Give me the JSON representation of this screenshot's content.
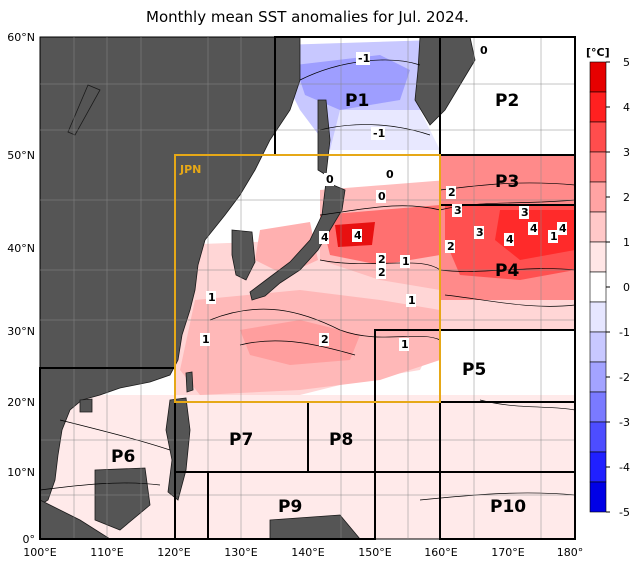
{
  "title": "Monthly mean SST anomalies for Jul. 2024.",
  "colorbar": {
    "unit": "[°C]",
    "ticks": [
      "5",
      "4",
      "3",
      "2",
      "1",
      "0",
      "-1",
      "-2",
      "-3",
      "-4",
      "-5"
    ],
    "colors_top_to_bottom": [
      "#e60000",
      "#ff2020",
      "#ff4d4d",
      "#ff7a7a",
      "#ffa3a3",
      "#ffc8c8",
      "#ffe6e6",
      "#ffffff",
      "#e6e6ff",
      "#c8c8ff",
      "#a3a3ff",
      "#7a7aff",
      "#4d4dff",
      "#2020ff",
      "#0000e6"
    ]
  },
  "axes": {
    "lat_labels": [
      "60°N",
      "50°N",
      "40°N",
      "30°N",
      "20°N",
      "10°N",
      "0°"
    ],
    "lon_labels": [
      "100°E",
      "110°E",
      "120°E",
      "130°E",
      "140°E",
      "150°E",
      "160°E",
      "170°E",
      "180°"
    ]
  },
  "regions": {
    "jpn": "JPN",
    "p1": "P1",
    "p2": "P2",
    "p3": "P3",
    "p4": "P4",
    "p5": "P5",
    "p6": "P6",
    "p7": "P7",
    "p8": "P8",
    "p9": "P9",
    "p10": "P10"
  },
  "contour_labels": [
    "-1",
    "-1",
    "0",
    "0",
    "0",
    "0",
    "2",
    "3",
    "4",
    "4",
    "3",
    "4",
    "4",
    "4",
    "3",
    "2",
    "1",
    "2",
    "2",
    "1",
    "1",
    "2",
    "1",
    "1",
    "1"
  ],
  "colors": {
    "land": "#555555",
    "jpn_box": "#e6a817",
    "grid": "#000000"
  }
}
